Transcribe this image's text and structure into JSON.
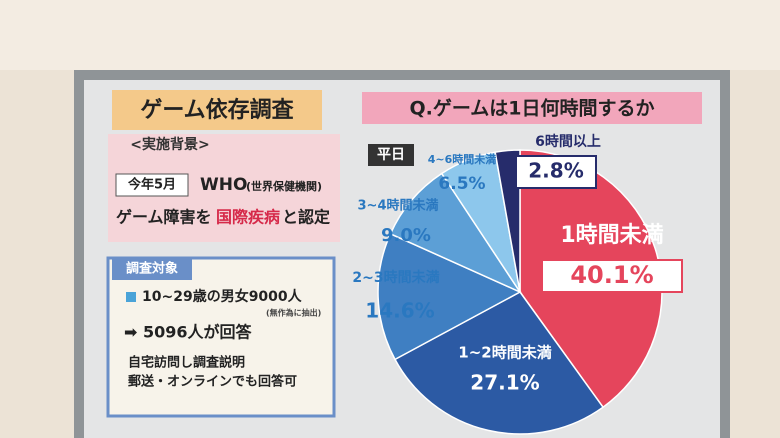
{
  "chart_data": {
    "type": "pie",
    "title": "Q.ゲームは1日何時間するか",
    "subtitle": "平日",
    "categories": [
      "1時間未満",
      "1~2時間未満",
      "2~3時間未満",
      "3~4時間未満",
      "4~6時間未満",
      "6時間以上"
    ],
    "values": [
      40.1,
      27.1,
      14.6,
      9.0,
      6.5,
      2.8
    ],
    "value_labels": [
      "40.1%",
      "27.1%",
      "14.6%",
      "9.0%",
      "6.5%",
      "2.8%"
    ],
    "colors": [
      "#e5455c",
      "#2c5aa4",
      "#3f7fc2",
      "#5c9fd6",
      "#8dc7ec",
      "#262c6b"
    ]
  },
  "panel": {
    "title": "ゲーム依存調査",
    "background_heading": "<実施背景>",
    "date": "今年5月",
    "org": "WHO",
    "org_note": "(世界保健機関)",
    "line_a": "ゲーム障害を",
    "line_b": "国際疾病",
    "line_c": "と認定",
    "target_heading": "調査対象",
    "target": "10~29歳の男女9000人",
    "target_note": "(無作為に抽出)",
    "response": "➡ 5096人が回答",
    "method_1": "自宅訪問し調査説明",
    "method_2": "郵送・オンラインでも回答可"
  }
}
